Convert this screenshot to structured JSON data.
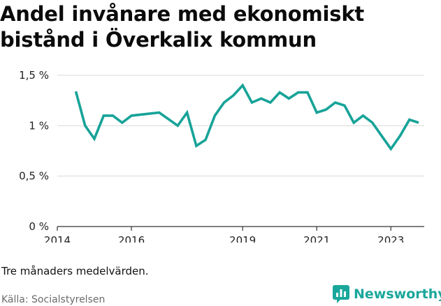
{
  "title": "Andel invånare med ekonomiskt bistånd i Överkalix kommun",
  "note": "Tre månaders medelvärden.",
  "source": "Källa: Socialstyrelsen",
  "brand": {
    "name": "Newsworthy",
    "color": "#1aa79b"
  },
  "colors": {
    "line": "#17a398",
    "grid": "#d9d9d9",
    "axis": "#333333"
  },
  "chart_data": {
    "type": "line",
    "title": "Andel invånare med ekonomiskt bistånd i Överkalix kommun",
    "xlabel": "",
    "ylabel": "",
    "xlim": [
      2014.0,
      2023.9
    ],
    "ylim": [
      0,
      1.5
    ],
    "x_ticks": [
      2014,
      2016,
      2019,
      2021,
      2023
    ],
    "y_ticks": [
      {
        "value": 0,
        "label": "0 %"
      },
      {
        "value": 0.5,
        "label": "0,5 %"
      },
      {
        "value": 1,
        "label": "1 %"
      },
      {
        "value": 1.5,
        "label": "1,5 %"
      }
    ],
    "grid": true,
    "series": [
      {
        "x": [
          2014.5,
          2014.75,
          2015.0,
          2015.25,
          2015.5,
          2015.75,
          2016.0,
          2016.75,
          2017.25,
          2017.5,
          2017.75,
          2018.0,
          2018.25,
          2018.5,
          2018.75,
          2019.0,
          2019.25,
          2019.5,
          2019.75,
          2020.0,
          2020.25,
          2020.5,
          2020.75,
          2021.0,
          2021.25,
          2021.5,
          2021.75,
          2022.0,
          2022.25,
          2022.5,
          2022.75,
          2023.0,
          2023.25,
          2023.5,
          2023.75
        ],
        "y": [
          1.34,
          1.0,
          0.87,
          1.1,
          1.1,
          1.03,
          1.1,
          1.13,
          1.0,
          1.13,
          0.8,
          0.86,
          1.1,
          1.23,
          1.3,
          1.4,
          1.23,
          1.27,
          1.23,
          1.33,
          1.27,
          1.33,
          1.33,
          1.13,
          1.16,
          1.23,
          1.2,
          1.03,
          1.1,
          1.03,
          0.9,
          0.77,
          0.9,
          1.06,
          1.03
        ]
      }
    ]
  }
}
